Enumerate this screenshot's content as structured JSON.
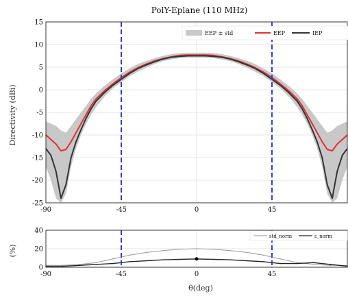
{
  "chart_data": [
    {
      "type": "line",
      "title": "PolY-Eplane (110 MHz)",
      "ylabel": "Directivity (dBi)",
      "xlabel": "",
      "xlim": [
        -90,
        90
      ],
      "ylim": [
        -25,
        15
      ],
      "xticks": [
        "-90",
        "-45",
        "0",
        "45"
      ],
      "yticks": [
        "15",
        "10",
        "5",
        "0",
        "-5",
        "-10",
        "-15",
        "-20",
        "-25"
      ],
      "grid": true,
      "legend_position": "top-right",
      "vlines": [
        -45,
        45
      ],
      "x": [
        -90,
        -87,
        -84,
        -81,
        -78,
        -75,
        -72,
        -69,
        -66,
        -63,
        -60,
        -55,
        -50,
        -45,
        -40,
        -35,
        -30,
        -25,
        -20,
        -15,
        -10,
        -5,
        0,
        5,
        10,
        15,
        20,
        25,
        30,
        35,
        40,
        45,
        50,
        55,
        60,
        63,
        66,
        69,
        72,
        75,
        78,
        81,
        84,
        87,
        90
      ],
      "series": [
        {
          "name": "EEP",
          "values": [
            -10,
            -11,
            -12,
            -13.5,
            -13.2,
            -11.5,
            -9.5,
            -7.5,
            -5.5,
            -3.5,
            -2,
            -0.2,
            1.3,
            2.7,
            3.9,
            4.9,
            5.7,
            6.4,
            6.9,
            7.3,
            7.6,
            7.7,
            7.7,
            7.7,
            7.6,
            7.3,
            6.9,
            6.4,
            5.7,
            4.9,
            3.9,
            2.7,
            1.3,
            -0.2,
            -2,
            -3.5,
            -5.5,
            -7.5,
            -9.5,
            -11.5,
            -13.2,
            -13.5,
            -12,
            -11,
            -10
          ]
        },
        {
          "name": "IEP",
          "values": [
            -13,
            -14.5,
            -18,
            -24,
            -21,
            -15,
            -11.5,
            -8.8,
            -6.3,
            -4.2,
            -2.5,
            -0.6,
            1,
            2.3,
            3.6,
            4.7,
            5.5,
            6.2,
            6.8,
            7.2,
            7.4,
            7.5,
            7.5,
            7.5,
            7.4,
            7.2,
            6.8,
            6.2,
            5.5,
            4.7,
            3.6,
            2.3,
            1,
            -0.6,
            -2.5,
            -4.2,
            -6.3,
            -8.8,
            -11.5,
            -15,
            -21,
            -24,
            -18,
            -14.5,
            -13
          ]
        },
        {
          "name": "EEP ± std",
          "lower": [
            -17,
            -20,
            -24,
            -25,
            -23,
            -17,
            -13,
            -10,
            -7.5,
            -5.5,
            -3.8,
            -1.5,
            0.3,
            1.7,
            3,
            4,
            4.9,
            5.7,
            6.3,
            6.7,
            7,
            7.1,
            7.1,
            7.1,
            7,
            6.7,
            6.3,
            5.7,
            4.9,
            4,
            3,
            1.7,
            0.3,
            -1.5,
            -3.8,
            -5.5,
            -7.5,
            -10,
            -13,
            -17,
            -23,
            -25,
            -24,
            -20,
            -17
          ],
          "upper": [
            -7,
            -7.5,
            -8,
            -9,
            -9.5,
            -8,
            -6.5,
            -5,
            -3.5,
            -2,
            -0.8,
            0.9,
            2.3,
            3.6,
            4.7,
            5.7,
            6.4,
            7,
            7.5,
            7.9,
            8.1,
            8.2,
            8.2,
            8.2,
            8.1,
            7.9,
            7.5,
            7,
            6.4,
            5.7,
            4.7,
            3.6,
            2.3,
            0.9,
            -0.8,
            -2,
            -3.5,
            -5,
            -6.5,
            -8,
            -9.5,
            -9,
            -8,
            -7.5,
            -7
          ]
        }
      ]
    },
    {
      "type": "line",
      "title": "",
      "ylabel": "(%)",
      "xlabel": "θ(deg)",
      "xlim": [
        -90,
        90
      ],
      "ylim": [
        0,
        40
      ],
      "xticks": [
        "-90",
        "-45",
        "0",
        "45"
      ],
      "yticks": [
        "40",
        "20",
        "0"
      ],
      "grid": true,
      "legend_position": "top-right",
      "vlines": [
        -45,
        45
      ],
      "x": [
        -90,
        -80,
        -70,
        -60,
        -50,
        -45,
        -40,
        -30,
        -20,
        -10,
        0,
        10,
        20,
        30,
        40,
        45,
        50,
        60,
        70,
        80,
        90
      ],
      "series": [
        {
          "name": "std_norm",
          "values": [
            2,
            2,
            3,
            5,
            9,
            11,
            13,
            16,
            18,
            19.5,
            20,
            19.5,
            18,
            16,
            13,
            11,
            9,
            5,
            3,
            2,
            2
          ]
        },
        {
          "name": "ε_norm",
          "values": [
            1,
            1,
            2,
            3,
            4,
            5,
            6,
            7,
            8,
            8.5,
            9,
            8.5,
            8,
            7,
            6,
            5,
            4,
            4,
            5,
            3,
            1
          ]
        }
      ],
      "markers": [
        {
          "x": 0,
          "y": 9
        }
      ]
    }
  ],
  "legend": {
    "top": [
      "EEP ± std",
      "EEP",
      "IEP"
    ],
    "bottom": [
      "std_norm",
      "ε_norm"
    ]
  },
  "colors": {
    "eep": "#e03030",
    "iep": "#333333",
    "band": "#c8c8c8",
    "vline": "#2b3fd6",
    "grid": "#e6e6e6",
    "std": "#999999",
    "eps": "#222222"
  }
}
